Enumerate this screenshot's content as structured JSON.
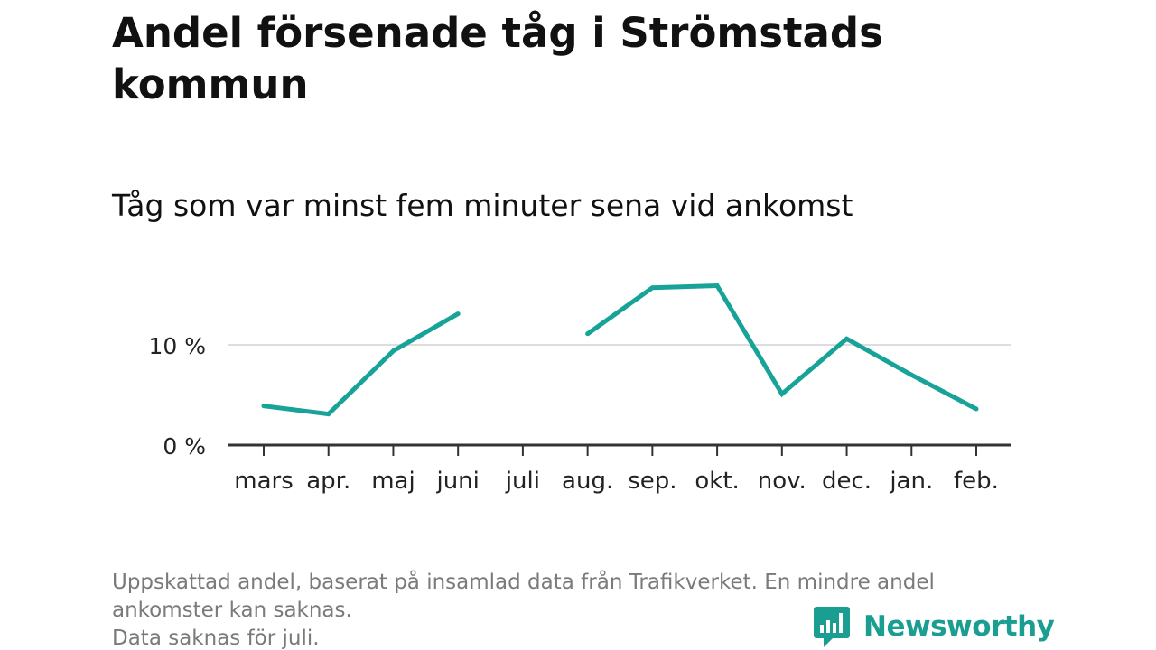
{
  "title": "Andel försenade tåg i Strömstads kommun",
  "subtitle": "Tåg som var minst fem minuter sena vid ankomst",
  "footnote": [
    "Uppskattad andel, baserat på insamlad data från Trafikverket. En mindre andel",
    "ankomster kan saknas.",
    "Data saknas för juli."
  ],
  "logo": {
    "text": "Newsworthy",
    "icon": "newsworthy-logo-icon"
  },
  "colors": {
    "line": "#17a398",
    "grid": "#dddddd",
    "axis": "#333333",
    "footnote": "#7a7a7a",
    "brand": "#1a9e92"
  },
  "chart_data": {
    "type": "line",
    "title": "Andel försenade tåg i Strömstads kommun",
    "subtitle": "Tåg som var minst fem minuter sena vid ankomst",
    "xlabel": "",
    "ylabel": "",
    "categories": [
      "mars",
      "apr.",
      "maj",
      "juni",
      "juli",
      "aug.",
      "sep.",
      "okt.",
      "nov.",
      "dec.",
      "jan.",
      "feb."
    ],
    "series": [
      {
        "name": "Andel försenade",
        "values": [
          3.9,
          3.1,
          9.4,
          13.1,
          null,
          11.1,
          15.7,
          15.9,
          5.1,
          10.6,
          7.0,
          3.6
        ]
      }
    ],
    "ylim": [
      0,
      16
    ],
    "yticks": [
      0,
      10
    ],
    "ytick_labels": [
      "0 %",
      "10 %"
    ],
    "grid": true,
    "legend": "none"
  }
}
